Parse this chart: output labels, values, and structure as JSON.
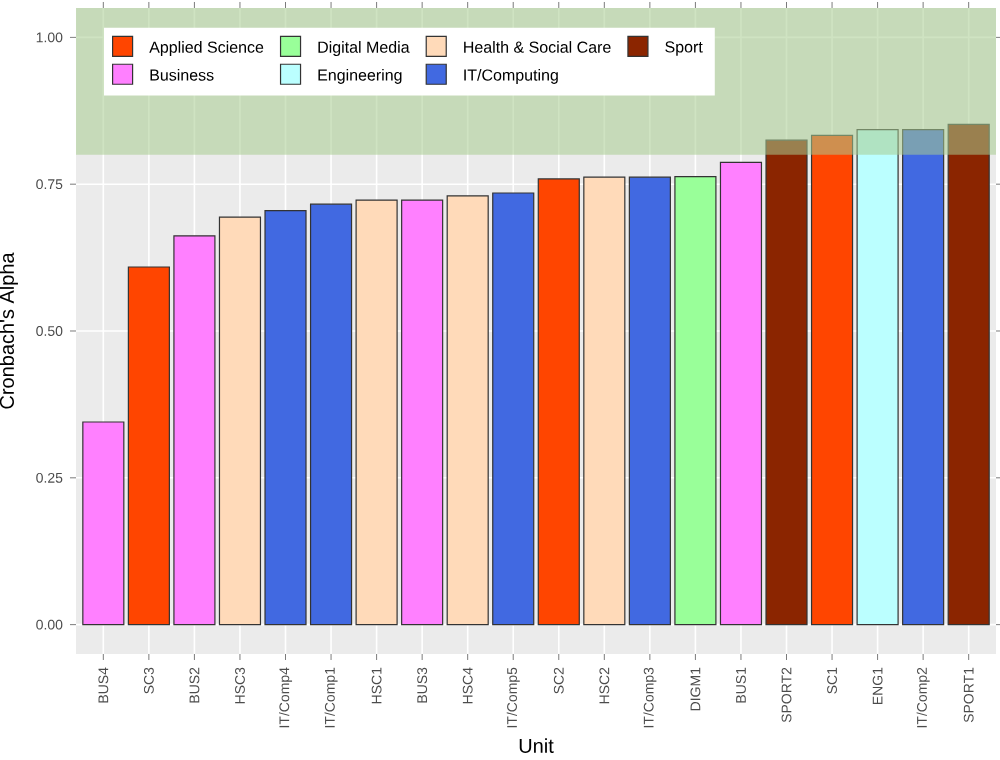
{
  "chart_data": {
    "type": "bar",
    "xlabel": "Unit",
    "ylabel": "Cronbach's Alpha",
    "categories": [
      "BUS4",
      "SC3",
      "BUS2",
      "HSC3",
      "IT/Comp4",
      "IT/Comp1",
      "HSC1",
      "BUS3",
      "HSC4",
      "IT/Comp5",
      "SC2",
      "HSC2",
      "IT/Comp3",
      "DIGM1",
      "BUS1",
      "SPORT2",
      "SC1",
      "ENG1",
      "IT/Comp2",
      "SPORT1"
    ],
    "series": [
      {
        "name": "Applied Science",
        "color": "#ff4500",
        "values": [
          null,
          0.609,
          null,
          null,
          null,
          null,
          null,
          null,
          null,
          null,
          0.759,
          null,
          null,
          null,
          null,
          null,
          0.833,
          null,
          null,
          null
        ]
      },
      {
        "name": "Business",
        "color": "#ff80ff",
        "values": [
          0.345,
          null,
          0.662,
          null,
          null,
          null,
          null,
          0.723,
          null,
          null,
          null,
          null,
          null,
          null,
          0.787,
          null,
          null,
          null,
          null,
          null
        ]
      },
      {
        "name": "Digital Media",
        "color": "#99ff99",
        "values": [
          null,
          null,
          null,
          null,
          null,
          null,
          null,
          null,
          null,
          null,
          null,
          null,
          null,
          0.763,
          null,
          null,
          null,
          null,
          null,
          null
        ]
      },
      {
        "name": "Engineering",
        "color": "#bbffff",
        "values": [
          null,
          null,
          null,
          null,
          null,
          null,
          null,
          null,
          null,
          null,
          null,
          null,
          null,
          null,
          null,
          null,
          null,
          0.843,
          null,
          null
        ]
      },
      {
        "name": "Health & Social Care",
        "color": "#ffdab9",
        "values": [
          null,
          null,
          null,
          0.694,
          null,
          null,
          0.723,
          null,
          0.73,
          null,
          null,
          0.762,
          null,
          null,
          null,
          null,
          null,
          null,
          null,
          null
        ]
      },
      {
        "name": "IT/Computing",
        "color": "#4169e1",
        "values": [
          null,
          null,
          null,
          null,
          0.705,
          0.716,
          null,
          null,
          null,
          0.735,
          null,
          null,
          0.762,
          null,
          null,
          null,
          null,
          null,
          0.843,
          null
        ]
      },
      {
        "name": "Sport",
        "color": "#8b2500",
        "values": [
          null,
          null,
          null,
          null,
          null,
          null,
          null,
          null,
          null,
          null,
          null,
          null,
          null,
          null,
          null,
          0.825,
          null,
          null,
          null,
          0.852
        ]
      }
    ],
    "ylim": [
      -0.05,
      1.05
    ],
    "yticks": [
      {
        "value": 0,
        "label": "0.00"
      },
      {
        "value": 0.25,
        "label": "0.25"
      },
      {
        "value": 0.5,
        "label": "0.50"
      },
      {
        "value": 0.75,
        "label": "0.75"
      },
      {
        "value": 1,
        "label": "1.00"
      }
    ],
    "bands": [
      {
        "axis": "y",
        "from": 0.8,
        "to": 1.05,
        "color": "#a8cc90"
      }
    ],
    "grid": true,
    "legend": "top"
  }
}
